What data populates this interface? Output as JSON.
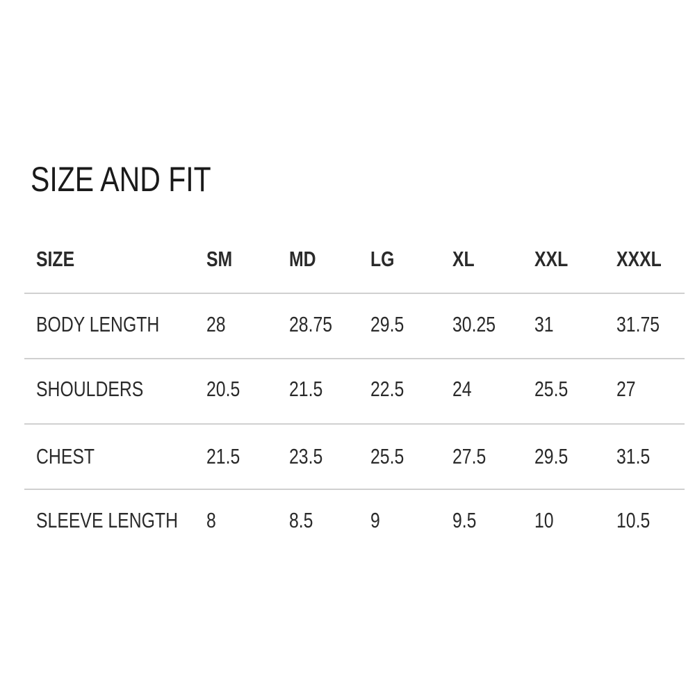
{
  "title": "SIZE AND FIT",
  "table": {
    "headers": [
      "SIZE",
      "SM",
      "MD",
      "LG",
      "XL",
      "XXL",
      "XXXL"
    ],
    "rows": [
      [
        "BODY LENGTH",
        "28",
        "28.75",
        "29.5",
        "30.25",
        "31",
        "31.75"
      ],
      [
        "SHOULDERS",
        "20.5",
        "21.5",
        "22.5",
        "24",
        "25.5",
        "27"
      ],
      [
        "CHEST",
        "21.5",
        "23.5",
        "25.5",
        "27.5",
        "29.5",
        "31.5"
      ],
      [
        "SLEEVE LENGTH",
        "8",
        "8.5",
        "9",
        "9.5",
        "10",
        "10.5"
      ]
    ]
  },
  "colors": {
    "text": "#222222",
    "rule": "#d0d0d0",
    "background": "#ffffff"
  }
}
